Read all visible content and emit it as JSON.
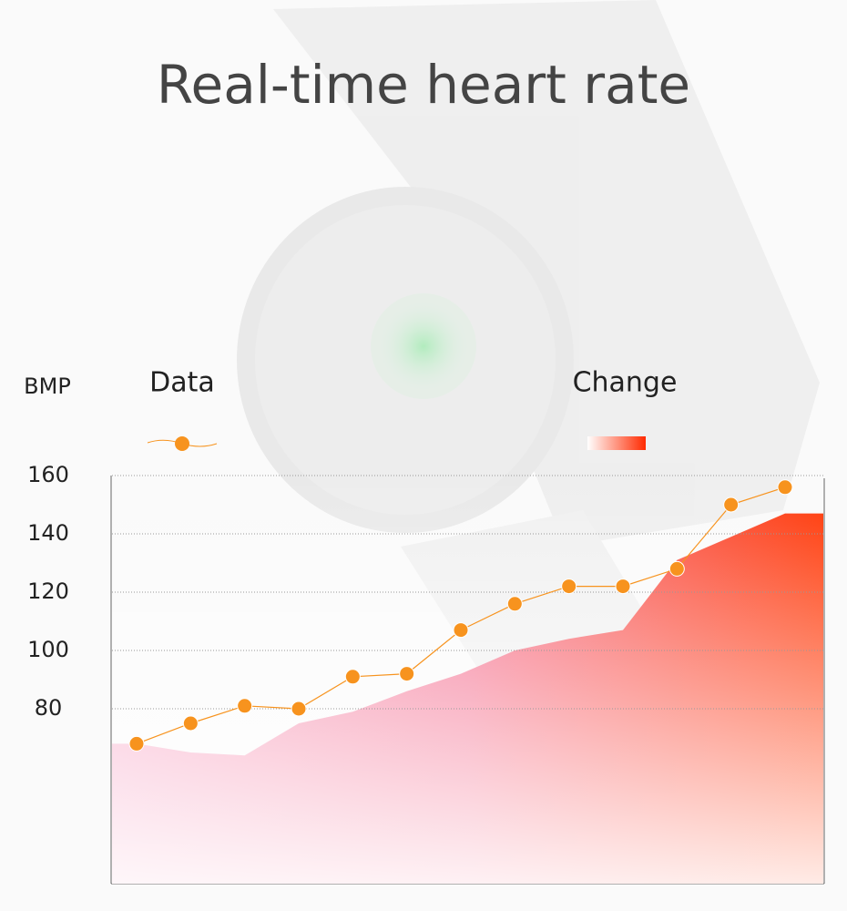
{
  "chart_data": {
    "type": "line",
    "title": "Real-time heart rate",
    "y_label": "BMP",
    "categories": [
      null,
      null,
      null,
      null,
      null,
      null,
      null,
      null,
      null,
      null,
      null,
      null,
      null
    ],
    "series": [
      {
        "name": "Data",
        "color": "#f7931e",
        "values": [
          68,
          75,
          81,
          80,
          91,
          92,
          107,
          116,
          122,
          122,
          128,
          150,
          156
        ]
      },
      {
        "name": "Change",
        "color": "#ff3300",
        "values": [
          68,
          65,
          64,
          75,
          79,
          86,
          92,
          100,
          104,
          107,
          131,
          139,
          147
        ]
      }
    ],
    "ylim": [
      20,
      160
    ],
    "yticks": [
      160,
      140,
      120,
      100,
      80
    ],
    "grid": true
  }
}
